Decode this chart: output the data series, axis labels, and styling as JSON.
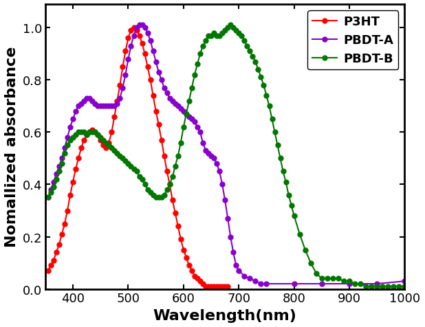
{
  "title": "",
  "xlabel": "Wavelength(nm)",
  "ylabel": "Nomallized absorbance",
  "xlim": [
    350,
    1000
  ],
  "ylim": [
    0,
    1.09
  ],
  "yticks": [
    0.0,
    0.2,
    0.4,
    0.6,
    0.8,
    1.0
  ],
  "xticks": [
    400,
    500,
    600,
    700,
    800,
    900,
    1000
  ],
  "background_color": "#ffffff",
  "P3HT_color": "#ff0000",
  "PBDTA_color": "#8800cc",
  "PBDTB_color": "#007700",
  "P3HT_x": [
    355,
    360,
    365,
    370,
    375,
    380,
    385,
    390,
    395,
    400,
    405,
    410,
    415,
    420,
    425,
    430,
    435,
    440,
    445,
    450,
    455,
    460,
    465,
    470,
    475,
    480,
    485,
    490,
    495,
    500,
    505,
    510,
    515,
    520,
    525,
    530,
    535,
    540,
    545,
    550,
    555,
    560,
    565,
    570,
    575,
    580,
    585,
    590,
    595,
    600,
    605,
    610,
    615,
    620,
    625,
    630,
    635,
    640,
    645,
    650,
    655,
    660,
    665,
    670,
    675,
    680
  ],
  "P3HT_y": [
    0.07,
    0.09,
    0.11,
    0.14,
    0.17,
    0.21,
    0.25,
    0.3,
    0.36,
    0.41,
    0.46,
    0.5,
    0.54,
    0.57,
    0.59,
    0.6,
    0.61,
    0.6,
    0.59,
    0.57,
    0.55,
    0.54,
    0.56,
    0.6,
    0.66,
    0.72,
    0.78,
    0.85,
    0.91,
    0.96,
    0.99,
    1.0,
    0.99,
    0.97,
    0.94,
    0.9,
    0.85,
    0.8,
    0.74,
    0.68,
    0.63,
    0.57,
    0.51,
    0.45,
    0.4,
    0.34,
    0.29,
    0.24,
    0.19,
    0.15,
    0.12,
    0.09,
    0.07,
    0.05,
    0.04,
    0.03,
    0.02,
    0.01,
    0.01,
    0.01,
    0.01,
    0.01,
    0.01,
    0.01,
    0.01,
    0.01
  ],
  "PBDTA_x": [
    355,
    360,
    365,
    370,
    375,
    380,
    385,
    390,
    395,
    400,
    405,
    410,
    415,
    420,
    425,
    430,
    435,
    440,
    445,
    450,
    455,
    460,
    465,
    470,
    475,
    480,
    485,
    490,
    495,
    500,
    505,
    510,
    515,
    520,
    525,
    530,
    535,
    540,
    545,
    550,
    555,
    560,
    565,
    570,
    575,
    580,
    585,
    590,
    595,
    600,
    605,
    610,
    615,
    620,
    625,
    630,
    635,
    640,
    645,
    650,
    655,
    660,
    665,
    670,
    675,
    680,
    685,
    690,
    695,
    700,
    710,
    720,
    730,
    740,
    750,
    800,
    850,
    900,
    950,
    1000
  ],
  "PBDTA_y": [
    0.35,
    0.38,
    0.41,
    0.44,
    0.47,
    0.5,
    0.54,
    0.58,
    0.62,
    0.65,
    0.68,
    0.7,
    0.71,
    0.72,
    0.73,
    0.73,
    0.72,
    0.71,
    0.7,
    0.7,
    0.7,
    0.7,
    0.7,
    0.7,
    0.7,
    0.71,
    0.73,
    0.77,
    0.82,
    0.88,
    0.93,
    0.97,
    1.0,
    1.01,
    1.01,
    1.0,
    0.98,
    0.95,
    0.91,
    0.87,
    0.83,
    0.8,
    0.77,
    0.75,
    0.73,
    0.72,
    0.71,
    0.7,
    0.69,
    0.68,
    0.67,
    0.66,
    0.65,
    0.64,
    0.62,
    0.6,
    0.56,
    0.53,
    0.52,
    0.51,
    0.5,
    0.48,
    0.45,
    0.4,
    0.34,
    0.27,
    0.2,
    0.14,
    0.09,
    0.07,
    0.05,
    0.04,
    0.03,
    0.02,
    0.02,
    0.02,
    0.02,
    0.02,
    0.02,
    0.03
  ],
  "PBDTB_x": [
    355,
    360,
    365,
    370,
    375,
    380,
    385,
    390,
    395,
    400,
    405,
    410,
    415,
    420,
    425,
    430,
    435,
    440,
    445,
    450,
    455,
    460,
    465,
    470,
    475,
    480,
    485,
    490,
    495,
    500,
    505,
    510,
    515,
    520,
    525,
    530,
    535,
    540,
    545,
    550,
    555,
    560,
    565,
    570,
    575,
    580,
    585,
    590,
    595,
    600,
    605,
    610,
    615,
    620,
    625,
    630,
    635,
    640,
    645,
    650,
    655,
    660,
    665,
    670,
    675,
    680,
    685,
    690,
    695,
    700,
    705,
    710,
    715,
    720,
    725,
    730,
    735,
    740,
    745,
    750,
    755,
    760,
    765,
    770,
    775,
    780,
    785,
    790,
    795,
    800,
    810,
    820,
    830,
    840,
    850,
    860,
    870,
    880,
    890,
    900,
    910,
    920,
    930,
    940,
    950,
    960,
    970,
    980,
    990,
    1000
  ],
  "PBDTB_y": [
    0.35,
    0.37,
    0.39,
    0.42,
    0.45,
    0.48,
    0.52,
    0.55,
    0.57,
    0.58,
    0.59,
    0.6,
    0.6,
    0.6,
    0.59,
    0.6,
    0.6,
    0.6,
    0.59,
    0.58,
    0.57,
    0.56,
    0.55,
    0.54,
    0.53,
    0.52,
    0.51,
    0.5,
    0.49,
    0.48,
    0.47,
    0.46,
    0.45,
    0.43,
    0.42,
    0.4,
    0.38,
    0.37,
    0.36,
    0.35,
    0.35,
    0.35,
    0.36,
    0.38,
    0.4,
    0.43,
    0.47,
    0.51,
    0.56,
    0.62,
    0.67,
    0.72,
    0.77,
    0.82,
    0.86,
    0.9,
    0.93,
    0.95,
    0.97,
    0.97,
    0.98,
    0.97,
    0.97,
    0.98,
    0.99,
    1.0,
    1.01,
    1.0,
    0.99,
    0.98,
    0.97,
    0.95,
    0.93,
    0.91,
    0.89,
    0.87,
    0.84,
    0.81,
    0.78,
    0.74,
    0.7,
    0.65,
    0.6,
    0.55,
    0.5,
    0.45,
    0.41,
    0.36,
    0.32,
    0.28,
    0.21,
    0.15,
    0.1,
    0.06,
    0.04,
    0.04,
    0.04,
    0.04,
    0.03,
    0.03,
    0.02,
    0.02,
    0.01,
    0.01,
    0.01,
    0.01,
    0.01,
    0.01,
    0.01,
    0.01
  ],
  "marker_size": 5,
  "linewidth": 1.5,
  "legend_fontsize": 13,
  "axis_label_fontsize": 16,
  "tick_fontsize": 13
}
